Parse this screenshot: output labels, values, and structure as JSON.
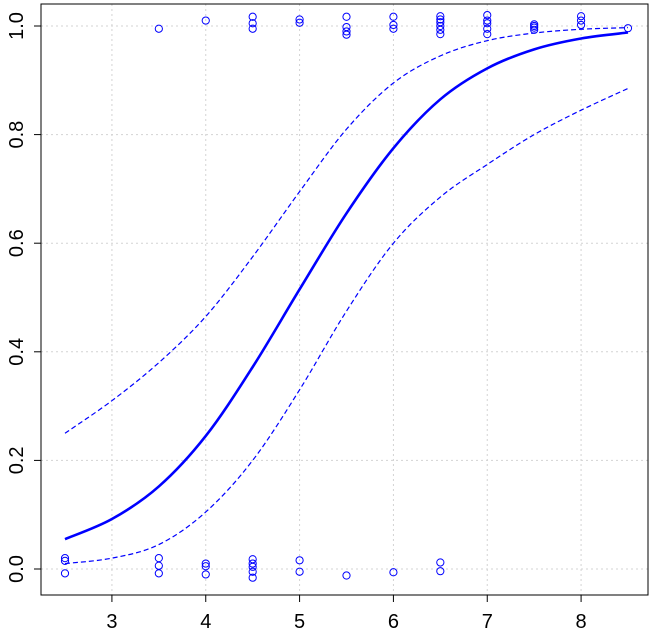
{
  "chart_data": {
    "type": "scatter",
    "title": "",
    "xlabel": "",
    "ylabel": "",
    "xlim": [
      2.5,
      8.5
    ],
    "ylim": [
      0,
      1
    ],
    "grid": true,
    "x_ticks": [
      3,
      4,
      5,
      6,
      7,
      8
    ],
    "x_tick_labels": [
      "3",
      "4",
      "5",
      "6",
      "7",
      "8"
    ],
    "y_ticks": [
      0.0,
      0.2,
      0.4,
      0.6,
      0.8,
      1.0
    ],
    "y_tick_labels": [
      "0.0",
      "0.2",
      "0.4",
      "0.6",
      "0.8",
      "1.0"
    ],
    "series": [
      {
        "kind": "points",
        "color": "#0000ff",
        "points": [
          [
            2.5,
            0.02
          ],
          [
            2.5,
            0.015
          ],
          [
            2.5,
            -0.008
          ],
          [
            3.5,
            0.02
          ],
          [
            3.5,
            0.006
          ],
          [
            3.5,
            -0.008
          ],
          [
            4.0,
            0.01
          ],
          [
            4.0,
            0.005
          ],
          [
            4.0,
            -0.01
          ],
          [
            4.5,
            0.018
          ],
          [
            4.5,
            0.01
          ],
          [
            4.5,
            0.004
          ],
          [
            4.5,
            -0.005
          ],
          [
            4.5,
            -0.016
          ],
          [
            5.0,
            0.016
          ],
          [
            5.0,
            -0.005
          ],
          [
            5.5,
            -0.012
          ],
          [
            6.0,
            -0.006
          ],
          [
            6.5,
            0.012
          ],
          [
            6.5,
            -0.004
          ],
          [
            3.5,
            0.995
          ],
          [
            4.0,
            1.01
          ],
          [
            4.5,
            1.017
          ],
          [
            4.5,
            1.005
          ],
          [
            4.5,
            0.995
          ],
          [
            5.0,
            1.012
          ],
          [
            5.0,
            1.006
          ],
          [
            5.5,
            1.017
          ],
          [
            5.5,
            0.998
          ],
          [
            5.5,
            0.99
          ],
          [
            5.5,
            0.984
          ],
          [
            6.0,
            1.017
          ],
          [
            6.0,
            1.002
          ],
          [
            6.0,
            0.995
          ],
          [
            6.5,
            1.018
          ],
          [
            6.5,
            1.012
          ],
          [
            6.5,
            1.007
          ],
          [
            6.5,
            1.0
          ],
          [
            6.5,
            0.993
          ],
          [
            6.5,
            0.985
          ],
          [
            7.0,
            1.02
          ],
          [
            7.0,
            1.01
          ],
          [
            7.0,
            1.005
          ],
          [
            7.0,
            0.995
          ],
          [
            7.0,
            0.985
          ],
          [
            7.5,
            1.003
          ],
          [
            7.5,
            1.0
          ],
          [
            7.5,
            0.997
          ],
          [
            7.5,
            0.993
          ],
          [
            8.0,
            1.018
          ],
          [
            8.0,
            1.01
          ],
          [
            8.0,
            1.002
          ],
          [
            8.5,
            0.996
          ]
        ]
      },
      {
        "kind": "fitted-curve",
        "color": "#0000ff",
        "line_style": "solid",
        "x": [
          2.5,
          3.0,
          3.5,
          4.0,
          4.5,
          5.0,
          5.5,
          6.0,
          6.5,
          7.0,
          7.5,
          8.0,
          8.5
        ],
        "y": [
          0.055,
          0.092,
          0.152,
          0.245,
          0.372,
          0.515,
          0.655,
          0.775,
          0.865,
          0.922,
          0.957,
          0.977,
          0.988
        ]
      },
      {
        "kind": "upper-confidence-band",
        "color": "#0000ff",
        "line_style": "dashed",
        "x": [
          2.5,
          3.0,
          3.5,
          4.0,
          4.5,
          5.0,
          5.5,
          6.0,
          6.5,
          7.0,
          7.5,
          8.0,
          8.5
        ],
        "y": [
          0.25,
          0.31,
          0.38,
          0.465,
          0.575,
          0.695,
          0.81,
          0.895,
          0.945,
          0.973,
          0.987,
          0.994,
          0.997
        ]
      },
      {
        "kind": "lower-confidence-band",
        "color": "#0000ff",
        "line_style": "dashed",
        "x": [
          2.5,
          3.0,
          3.5,
          4.0,
          4.5,
          5.0,
          5.5,
          6.0,
          6.5,
          7.0,
          7.5,
          8.0,
          8.5
        ],
        "y": [
          0.01,
          0.02,
          0.045,
          0.105,
          0.2,
          0.33,
          0.475,
          0.6,
          0.685,
          0.745,
          0.8,
          0.845,
          0.885
        ]
      }
    ]
  }
}
